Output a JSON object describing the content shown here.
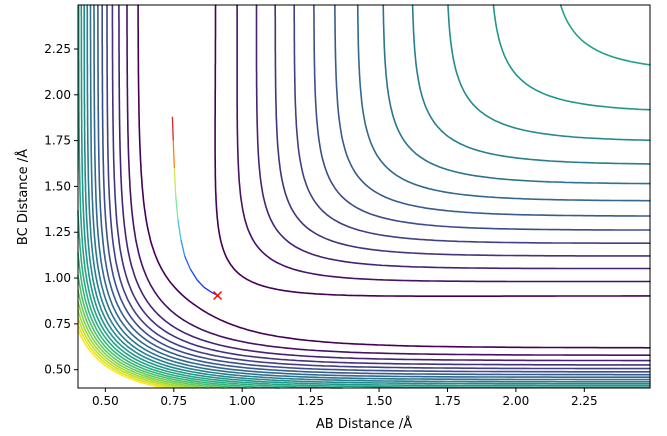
{
  "chart_data": {
    "type": "contour",
    "title": "",
    "xlabel": "AB Distance /Å",
    "ylabel": "BC Distance /Å",
    "xlim": [
      0.4,
      2.49
    ],
    "ylim": [
      0.4,
      2.49
    ],
    "xticks": [
      0.5,
      0.75,
      1.0,
      1.25,
      1.5,
      1.75,
      2.0,
      2.25
    ],
    "xtick_labels": [
      "0.50",
      "0.75",
      "1.00",
      "1.25",
      "1.50",
      "1.75",
      "2.00",
      "2.25"
    ],
    "yticks": [
      0.5,
      0.75,
      1.0,
      1.25,
      1.5,
      1.75,
      2.0,
      2.25
    ],
    "ytick_labels": [
      "0.50",
      "0.75",
      "1.00",
      "1.25",
      "1.50",
      "1.75",
      "2.00",
      "2.25"
    ],
    "grid": false,
    "colormap": "viridis",
    "contour_levels": 22,
    "trajectory": {
      "x": [
        0.745,
        0.748,
        0.752,
        0.757,
        0.765,
        0.776,
        0.79,
        0.81,
        0.835,
        0.86,
        0.885,
        0.91
      ],
      "y": [
        1.88,
        1.75,
        1.6,
        1.45,
        1.32,
        1.21,
        1.12,
        1.05,
        0.99,
        0.95,
        0.925,
        0.905
      ],
      "colors": [
        "#d62728",
        "#ff7f0e",
        "#d4e157",
        "#7ee8a2",
        "#40c8e0",
        "#2f8fff",
        "#2060ff",
        "#1a44ff",
        "#1536ff",
        "#1030ff",
        "#0b2aff",
        "#0a24ff"
      ]
    },
    "end_marker": {
      "x": 0.91,
      "y": 0.905,
      "symbol": "x",
      "color": "#ff0000"
    }
  }
}
